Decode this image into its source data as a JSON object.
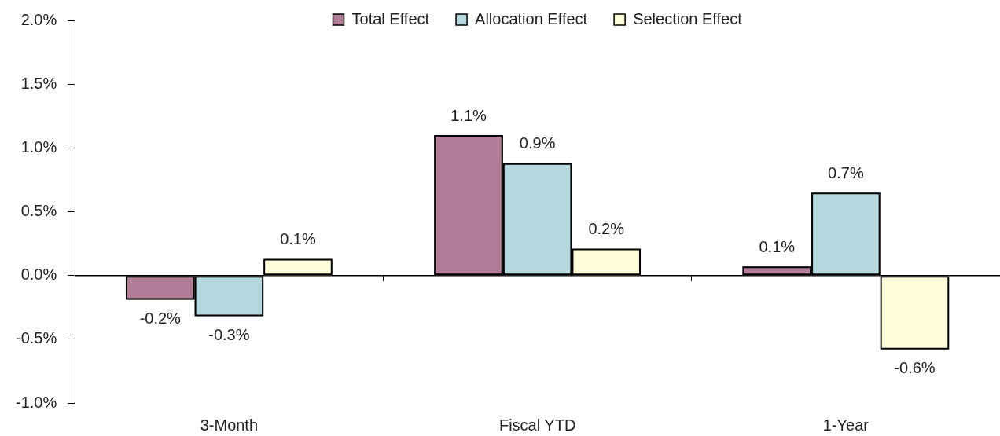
{
  "chart_data": {
    "type": "bar",
    "categories": [
      "3-Month",
      "Fiscal YTD",
      "1-Year"
    ],
    "series": [
      {
        "name": "Total Effect",
        "color": "#b07c96",
        "values": [
          -0.19,
          1.1,
          0.07
        ],
        "value_labels": [
          "-0.2%",
          "1.1%",
          "0.1%"
        ]
      },
      {
        "name": "Allocation Effect",
        "color": "#b4d8dd",
        "values": [
          -0.32,
          0.88,
          0.65
        ],
        "value_labels": [
          "-0.3%",
          "0.9%",
          "0.7%"
        ]
      },
      {
        "name": "Selection Effect",
        "color": "#ffffdc",
        "values": [
          0.13,
          0.21,
          -0.58
        ],
        "value_labels": [
          "0.1%",
          "0.2%",
          "-0.6%"
        ]
      }
    ],
    "ylim": [
      -1,
      2
    ],
    "yticks": [
      {
        "value": -1,
        "label": "-1.0%"
      },
      {
        "value": -0.5,
        "label": "-0.5%"
      },
      {
        "value": 0,
        "label": "0.0%"
      },
      {
        "value": 0.5,
        "label": "0.5%"
      },
      {
        "value": 1,
        "label": "1.0%"
      },
      {
        "value": 1.5,
        "label": "1.5%"
      },
      {
        "value": 2,
        "label": "2.0%"
      }
    ],
    "ref_lines": [
      {
        "axis": "y",
        "value": 0,
        "color": "#000000"
      }
    ],
    "grid": false,
    "legend": "top"
  }
}
